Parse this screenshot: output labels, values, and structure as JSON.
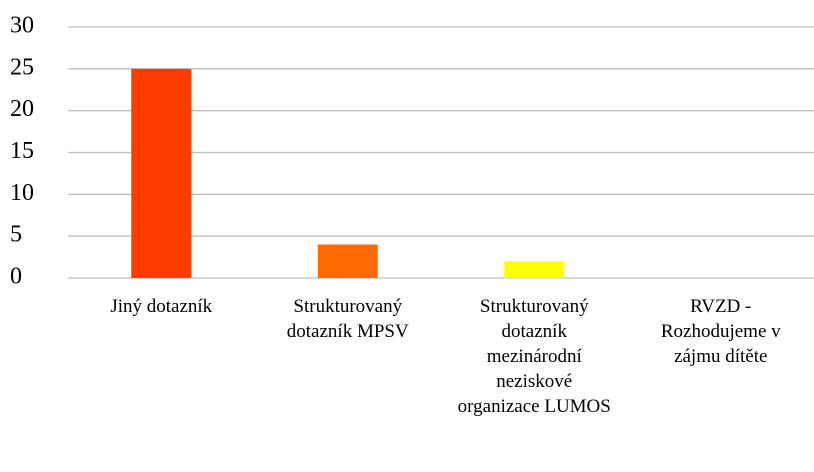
{
  "chart_data": {
    "type": "bar",
    "categories": [
      "Jiný dotazník",
      "Strukturovaný dotazník MPSV",
      "Strukturovaný dotazník mezinárodní neziskové organizace LUMOS",
      "RVZD - Rozhodujeme v zájmu dítěte"
    ],
    "values": [
      25,
      4,
      2,
      0
    ],
    "colors": [
      "#ff3c00",
      "#ff6a00",
      "#ffff00",
      "#ffd700"
    ],
    "ylim": [
      0,
      30
    ],
    "yticks": [
      0,
      5,
      10,
      15,
      20,
      25,
      30
    ],
    "grid": true
  }
}
